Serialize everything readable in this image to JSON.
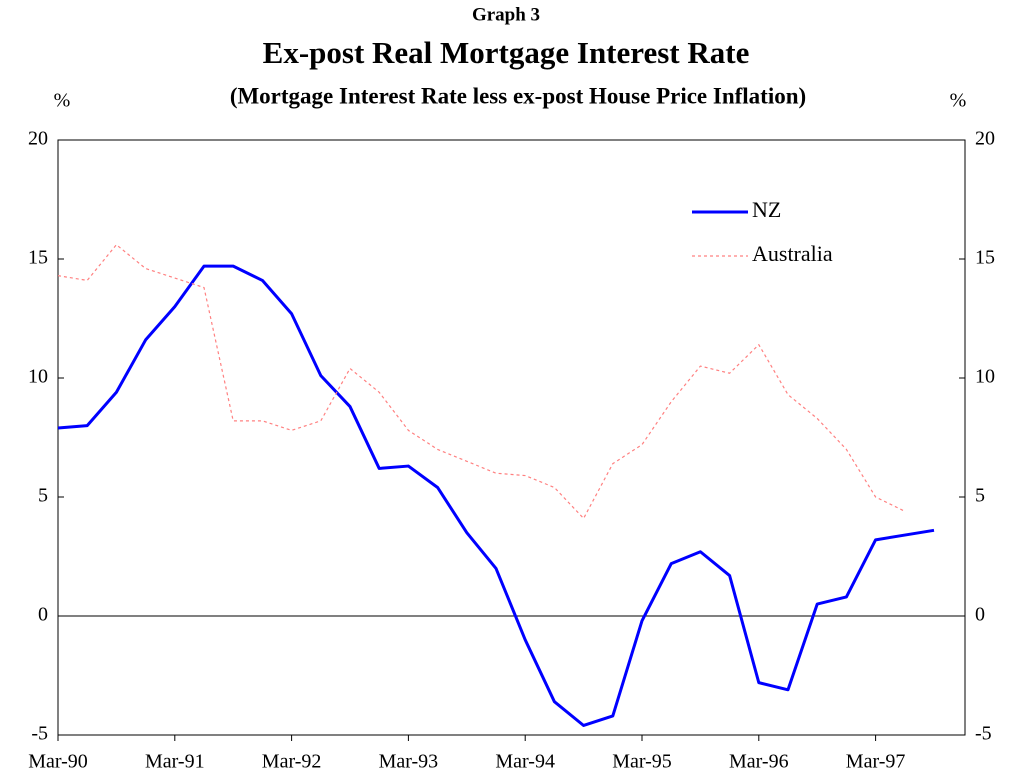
{
  "chart_data": {
    "type": "line",
    "title": "Graph 3",
    "subtitle": "Ex-post Real Mortgage Interest Rate",
    "note": "(Mortgage Interest Rate less ex-post House Price Inflation)",
    "ylabel": "%",
    "y2label": "%",
    "categories": [
      "Mar-90",
      null,
      null,
      null,
      "Mar-91",
      null,
      null,
      null,
      "Mar-92",
      null,
      null,
      null,
      "Mar-93",
      null,
      null,
      null,
      "Mar-94",
      null,
      null,
      null,
      "Mar-95",
      null,
      null,
      null,
      "Mar-96",
      null,
      null,
      null,
      "Mar-97",
      null,
      null
    ],
    "series": [
      {
        "name": "NZ",
        "color": "#0000ff",
        "style": "solid",
        "values": [
          7.9,
          8.0,
          9.4,
          11.6,
          13.0,
          14.7,
          14.7,
          14.1,
          12.7,
          10.1,
          8.8,
          6.2,
          6.3,
          5.4,
          3.5,
          2.0,
          -1.0,
          -3.6,
          -4.6,
          -4.2,
          -0.2,
          2.2,
          2.7,
          1.7,
          -2.8,
          -3.1,
          0.5,
          0.8,
          3.2,
          3.4,
          3.6
        ]
      },
      {
        "name": "Australia",
        "color": "#ff8080",
        "style": "dotted",
        "values": [
          14.3,
          14.1,
          15.6,
          14.6,
          14.2,
          13.8,
          8.2,
          8.2,
          7.8,
          8.2,
          10.4,
          9.4,
          7.8,
          7.0,
          6.5,
          6.0,
          5.9,
          5.4,
          4.1,
          6.4,
          7.2,
          9.0,
          10.5,
          10.2,
          11.4,
          9.3,
          8.3,
          7.0,
          5.0,
          4.4,
          null
        ]
      }
    ],
    "ylim": [
      -5,
      20
    ],
    "yticks": [
      -5,
      0,
      5,
      10,
      15,
      20
    ],
    "y2lim": [
      -5,
      20
    ],
    "y2ticks": [
      -5,
      0,
      5,
      10,
      15,
      20
    ],
    "legend": "upper right"
  }
}
